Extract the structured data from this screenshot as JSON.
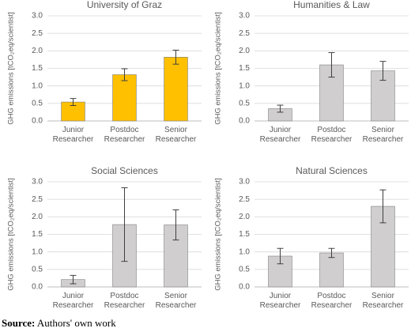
{
  "chart_data": [
    {
      "type": "bar",
      "title": "University of Graz",
      "y_label": "GHG emissions [tCO₂eq/scientist]",
      "categories": [
        "Junior Researcher",
        "Postdoc Researcher",
        "Senior Researcher"
      ],
      "values": [
        0.54,
        1.32,
        1.82
      ],
      "errors": [
        0.1,
        0.17,
        0.2
      ],
      "color": "#ffc000",
      "ylim": [
        0,
        3
      ],
      "yticks": [
        {
          "value": 0,
          "label": "0.0"
        },
        0.5,
        {
          "value": 1,
          "label": "1.0"
        },
        1.5,
        {
          "value": 2,
          "label": "2.0"
        },
        2.5,
        {
          "value": 3,
          "label": "3.0"
        }
      ],
      "grid": true
    },
    {
      "type": "bar",
      "title": "Humanities & Law",
      "y_label": "GHG emissions [tCO₂eq/scientist]",
      "categories": [
        "Junior Researcher",
        "Postdoc Researcher",
        "Senior Researcher"
      ],
      "values": [
        0.35,
        1.6,
        1.43
      ],
      "errors": [
        0.1,
        0.35,
        0.27
      ],
      "color": "#d0cece",
      "ylim": [
        0,
        3
      ],
      "yticks": [
        {
          "value": 0,
          "label": "0.0"
        },
        0.5,
        {
          "value": 1,
          "label": "1.0"
        },
        1.5,
        {
          "value": 2,
          "label": "2.0"
        },
        2.5,
        {
          "value": 3,
          "label": "3.0"
        }
      ],
      "grid": true
    },
    {
      "type": "bar",
      "title": "Social Sciences",
      "y_label": "GHG emissions [tCO₂eq/scientist]",
      "categories": [
        "Junior Researcher",
        "Postdoc Researcher",
        "Senior Researcher"
      ],
      "values": [
        0.21,
        1.78,
        1.77
      ],
      "errors": [
        0.12,
        1.05,
        0.43
      ],
      "color": "#d0cece",
      "ylim": [
        0,
        3
      ],
      "yticks": [
        {
          "value": 0,
          "label": "0.0"
        },
        0.5,
        {
          "value": 1,
          "label": "1.0"
        },
        1.5,
        {
          "value": 2,
          "label": "2.0"
        },
        2.5,
        {
          "value": 3,
          "label": "3.0"
        }
      ],
      "grid": true
    },
    {
      "type": "bar",
      "title": "Natural Sciences",
      "y_label": "GHG emissions [tCO₂eq/scientist]",
      "categories": [
        "Junior Researcher",
        "Postdoc Researcher",
        "Senior Researcher"
      ],
      "values": [
        0.88,
        0.97,
        2.3
      ],
      "errors": [
        0.22,
        0.13,
        0.47
      ],
      "color": "#d0cece",
      "ylim": [
        0,
        3
      ],
      "yticks": [
        {
          "value": 0,
          "label": "0.0"
        },
        0.5,
        {
          "value": 1,
          "label": "1.0"
        },
        1.5,
        {
          "value": 2,
          "label": "2.0"
        },
        2.5,
        {
          "value": 3,
          "label": "3.0"
        }
      ],
      "grid": true
    }
  ],
  "source": {
    "label": "Source:",
    "text": "Authors' own work"
  }
}
